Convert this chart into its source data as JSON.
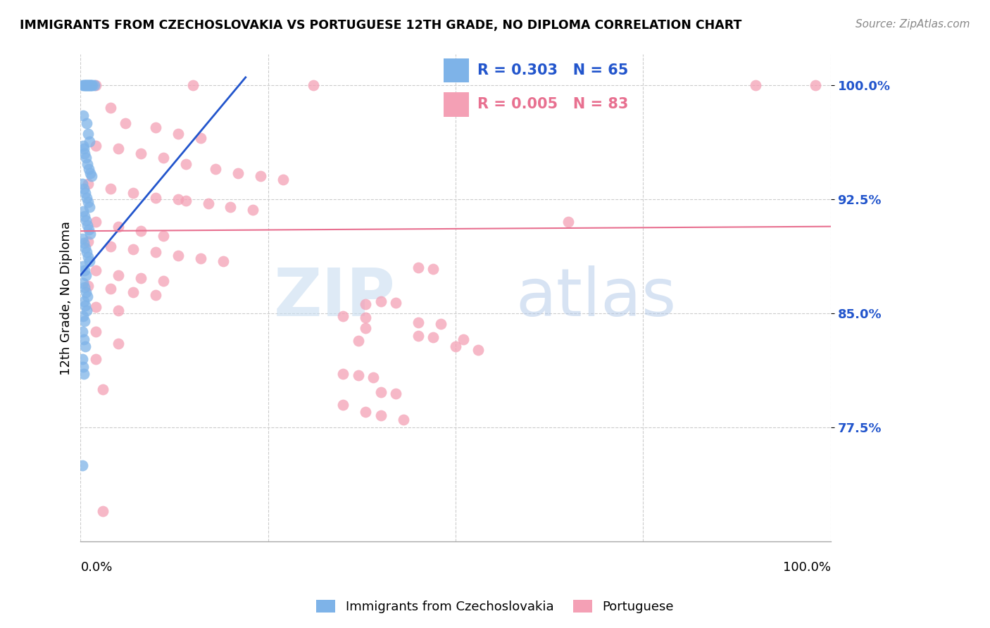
{
  "title": "IMMIGRANTS FROM CZECHOSLOVAKIA VS PORTUGUESE 12TH GRADE, NO DIPLOMA CORRELATION CHART",
  "source": "Source: ZipAtlas.com",
  "ylabel": "12th Grade, No Diploma",
  "yticks": [
    0.775,
    0.85,
    0.925,
    1.0
  ],
  "ytick_labels": [
    "77.5%",
    "85.0%",
    "92.5%",
    "100.0%"
  ],
  "blue_R": "0.303",
  "blue_N": "65",
  "pink_R": "0.005",
  "pink_N": "83",
  "legend_label_blue": "Immigrants from Czechoslovakia",
  "legend_label_pink": "Portuguese",
  "blue_color": "#7EB3E8",
  "pink_color": "#F4A0B5",
  "blue_line_color": "#2255CC",
  "pink_line_color": "#E87090",
  "watermark_zip": "ZIP",
  "watermark_atlas": "atlas",
  "blue_dots": [
    [
      0.002,
      1.0
    ],
    [
      0.004,
      1.0
    ],
    [
      0.005,
      1.0
    ],
    [
      0.006,
      1.0
    ],
    [
      0.007,
      1.0
    ],
    [
      0.008,
      1.0
    ],
    [
      0.009,
      1.0
    ],
    [
      0.01,
      1.0
    ],
    [
      0.011,
      1.0
    ],
    [
      0.012,
      1.0
    ],
    [
      0.013,
      1.0
    ],
    [
      0.014,
      1.0
    ],
    [
      0.015,
      1.0
    ],
    [
      0.016,
      1.0
    ],
    [
      0.018,
      1.0
    ],
    [
      0.003,
      0.98
    ],
    [
      0.008,
      0.975
    ],
    [
      0.01,
      0.968
    ],
    [
      0.012,
      0.963
    ],
    [
      0.003,
      0.96
    ],
    [
      0.004,
      0.958
    ],
    [
      0.005,
      0.955
    ],
    [
      0.007,
      0.952
    ],
    [
      0.009,
      0.948
    ],
    [
      0.011,
      0.945
    ],
    [
      0.013,
      0.942
    ],
    [
      0.015,
      0.94
    ],
    [
      0.002,
      0.935
    ],
    [
      0.004,
      0.932
    ],
    [
      0.006,
      0.929
    ],
    [
      0.008,
      0.926
    ],
    [
      0.01,
      0.923
    ],
    [
      0.012,
      0.92
    ],
    [
      0.003,
      0.917
    ],
    [
      0.005,
      0.914
    ],
    [
      0.007,
      0.911
    ],
    [
      0.009,
      0.908
    ],
    [
      0.011,
      0.905
    ],
    [
      0.013,
      0.902
    ],
    [
      0.002,
      0.899
    ],
    [
      0.004,
      0.896
    ],
    [
      0.006,
      0.893
    ],
    [
      0.008,
      0.89
    ],
    [
      0.01,
      0.887
    ],
    [
      0.012,
      0.884
    ],
    [
      0.003,
      0.881
    ],
    [
      0.005,
      0.878
    ],
    [
      0.007,
      0.875
    ],
    [
      0.003,
      0.87
    ],
    [
      0.005,
      0.867
    ],
    [
      0.007,
      0.864
    ],
    [
      0.009,
      0.861
    ],
    [
      0.004,
      0.858
    ],
    [
      0.006,
      0.855
    ],
    [
      0.008,
      0.852
    ],
    [
      0.003,
      0.848
    ],
    [
      0.005,
      0.845
    ],
    [
      0.002,
      0.838
    ],
    [
      0.004,
      0.833
    ],
    [
      0.006,
      0.828
    ],
    [
      0.002,
      0.82
    ],
    [
      0.003,
      0.815
    ],
    [
      0.004,
      0.81
    ],
    [
      0.002,
      0.75
    ]
  ],
  "pink_dots": [
    [
      0.02,
      1.0
    ],
    [
      0.15,
      1.0
    ],
    [
      0.31,
      1.0
    ],
    [
      0.9,
      1.0
    ],
    [
      0.98,
      1.0
    ],
    [
      0.04,
      0.985
    ],
    [
      0.06,
      0.975
    ],
    [
      0.1,
      0.972
    ],
    [
      0.13,
      0.968
    ],
    [
      0.16,
      0.965
    ],
    [
      0.02,
      0.96
    ],
    [
      0.05,
      0.958
    ],
    [
      0.08,
      0.955
    ],
    [
      0.11,
      0.952
    ],
    [
      0.14,
      0.948
    ],
    [
      0.18,
      0.945
    ],
    [
      0.21,
      0.942
    ],
    [
      0.24,
      0.94
    ],
    [
      0.27,
      0.938
    ],
    [
      0.01,
      0.935
    ],
    [
      0.04,
      0.932
    ],
    [
      0.07,
      0.929
    ],
    [
      0.1,
      0.926
    ],
    [
      0.13,
      0.925
    ],
    [
      0.14,
      0.924
    ],
    [
      0.17,
      0.922
    ],
    [
      0.2,
      0.92
    ],
    [
      0.23,
      0.918
    ],
    [
      0.65,
      0.91
    ],
    [
      0.02,
      0.91
    ],
    [
      0.05,
      0.907
    ],
    [
      0.08,
      0.904
    ],
    [
      0.11,
      0.901
    ],
    [
      0.01,
      0.897
    ],
    [
      0.04,
      0.894
    ],
    [
      0.07,
      0.892
    ],
    [
      0.1,
      0.89
    ],
    [
      0.13,
      0.888
    ],
    [
      0.16,
      0.886
    ],
    [
      0.19,
      0.884
    ],
    [
      0.45,
      0.88
    ],
    [
      0.47,
      0.879
    ],
    [
      0.02,
      0.878
    ],
    [
      0.05,
      0.875
    ],
    [
      0.08,
      0.873
    ],
    [
      0.11,
      0.871
    ],
    [
      0.01,
      0.868
    ],
    [
      0.04,
      0.866
    ],
    [
      0.07,
      0.864
    ],
    [
      0.1,
      0.862
    ],
    [
      0.4,
      0.858
    ],
    [
      0.42,
      0.857
    ],
    [
      0.38,
      0.856
    ],
    [
      0.02,
      0.854
    ],
    [
      0.05,
      0.852
    ],
    [
      0.35,
      0.848
    ],
    [
      0.38,
      0.847
    ],
    [
      0.45,
      0.844
    ],
    [
      0.48,
      0.843
    ],
    [
      0.38,
      0.84
    ],
    [
      0.02,
      0.838
    ],
    [
      0.45,
      0.835
    ],
    [
      0.47,
      0.834
    ],
    [
      0.51,
      0.833
    ],
    [
      0.37,
      0.832
    ],
    [
      0.05,
      0.83
    ],
    [
      0.5,
      0.828
    ],
    [
      0.53,
      0.826
    ],
    [
      0.02,
      0.82
    ],
    [
      0.35,
      0.81
    ],
    [
      0.37,
      0.809
    ],
    [
      0.39,
      0.808
    ],
    [
      0.03,
      0.8
    ],
    [
      0.4,
      0.798
    ],
    [
      0.42,
      0.797
    ],
    [
      0.35,
      0.79
    ],
    [
      0.38,
      0.785
    ],
    [
      0.4,
      0.783
    ],
    [
      0.43,
      0.78
    ],
    [
      0.03,
      0.72
    ]
  ],
  "xlim": [
    0.0,
    1.0
  ],
  "ylim": [
    0.7,
    1.02
  ],
  "blue_trend_x": [
    0.0,
    0.22
  ],
  "blue_trend_y": [
    0.875,
    1.005
  ],
  "pink_trend_x": [
    0.0,
    1.0
  ],
  "pink_trend_y": [
    0.904,
    0.907
  ]
}
